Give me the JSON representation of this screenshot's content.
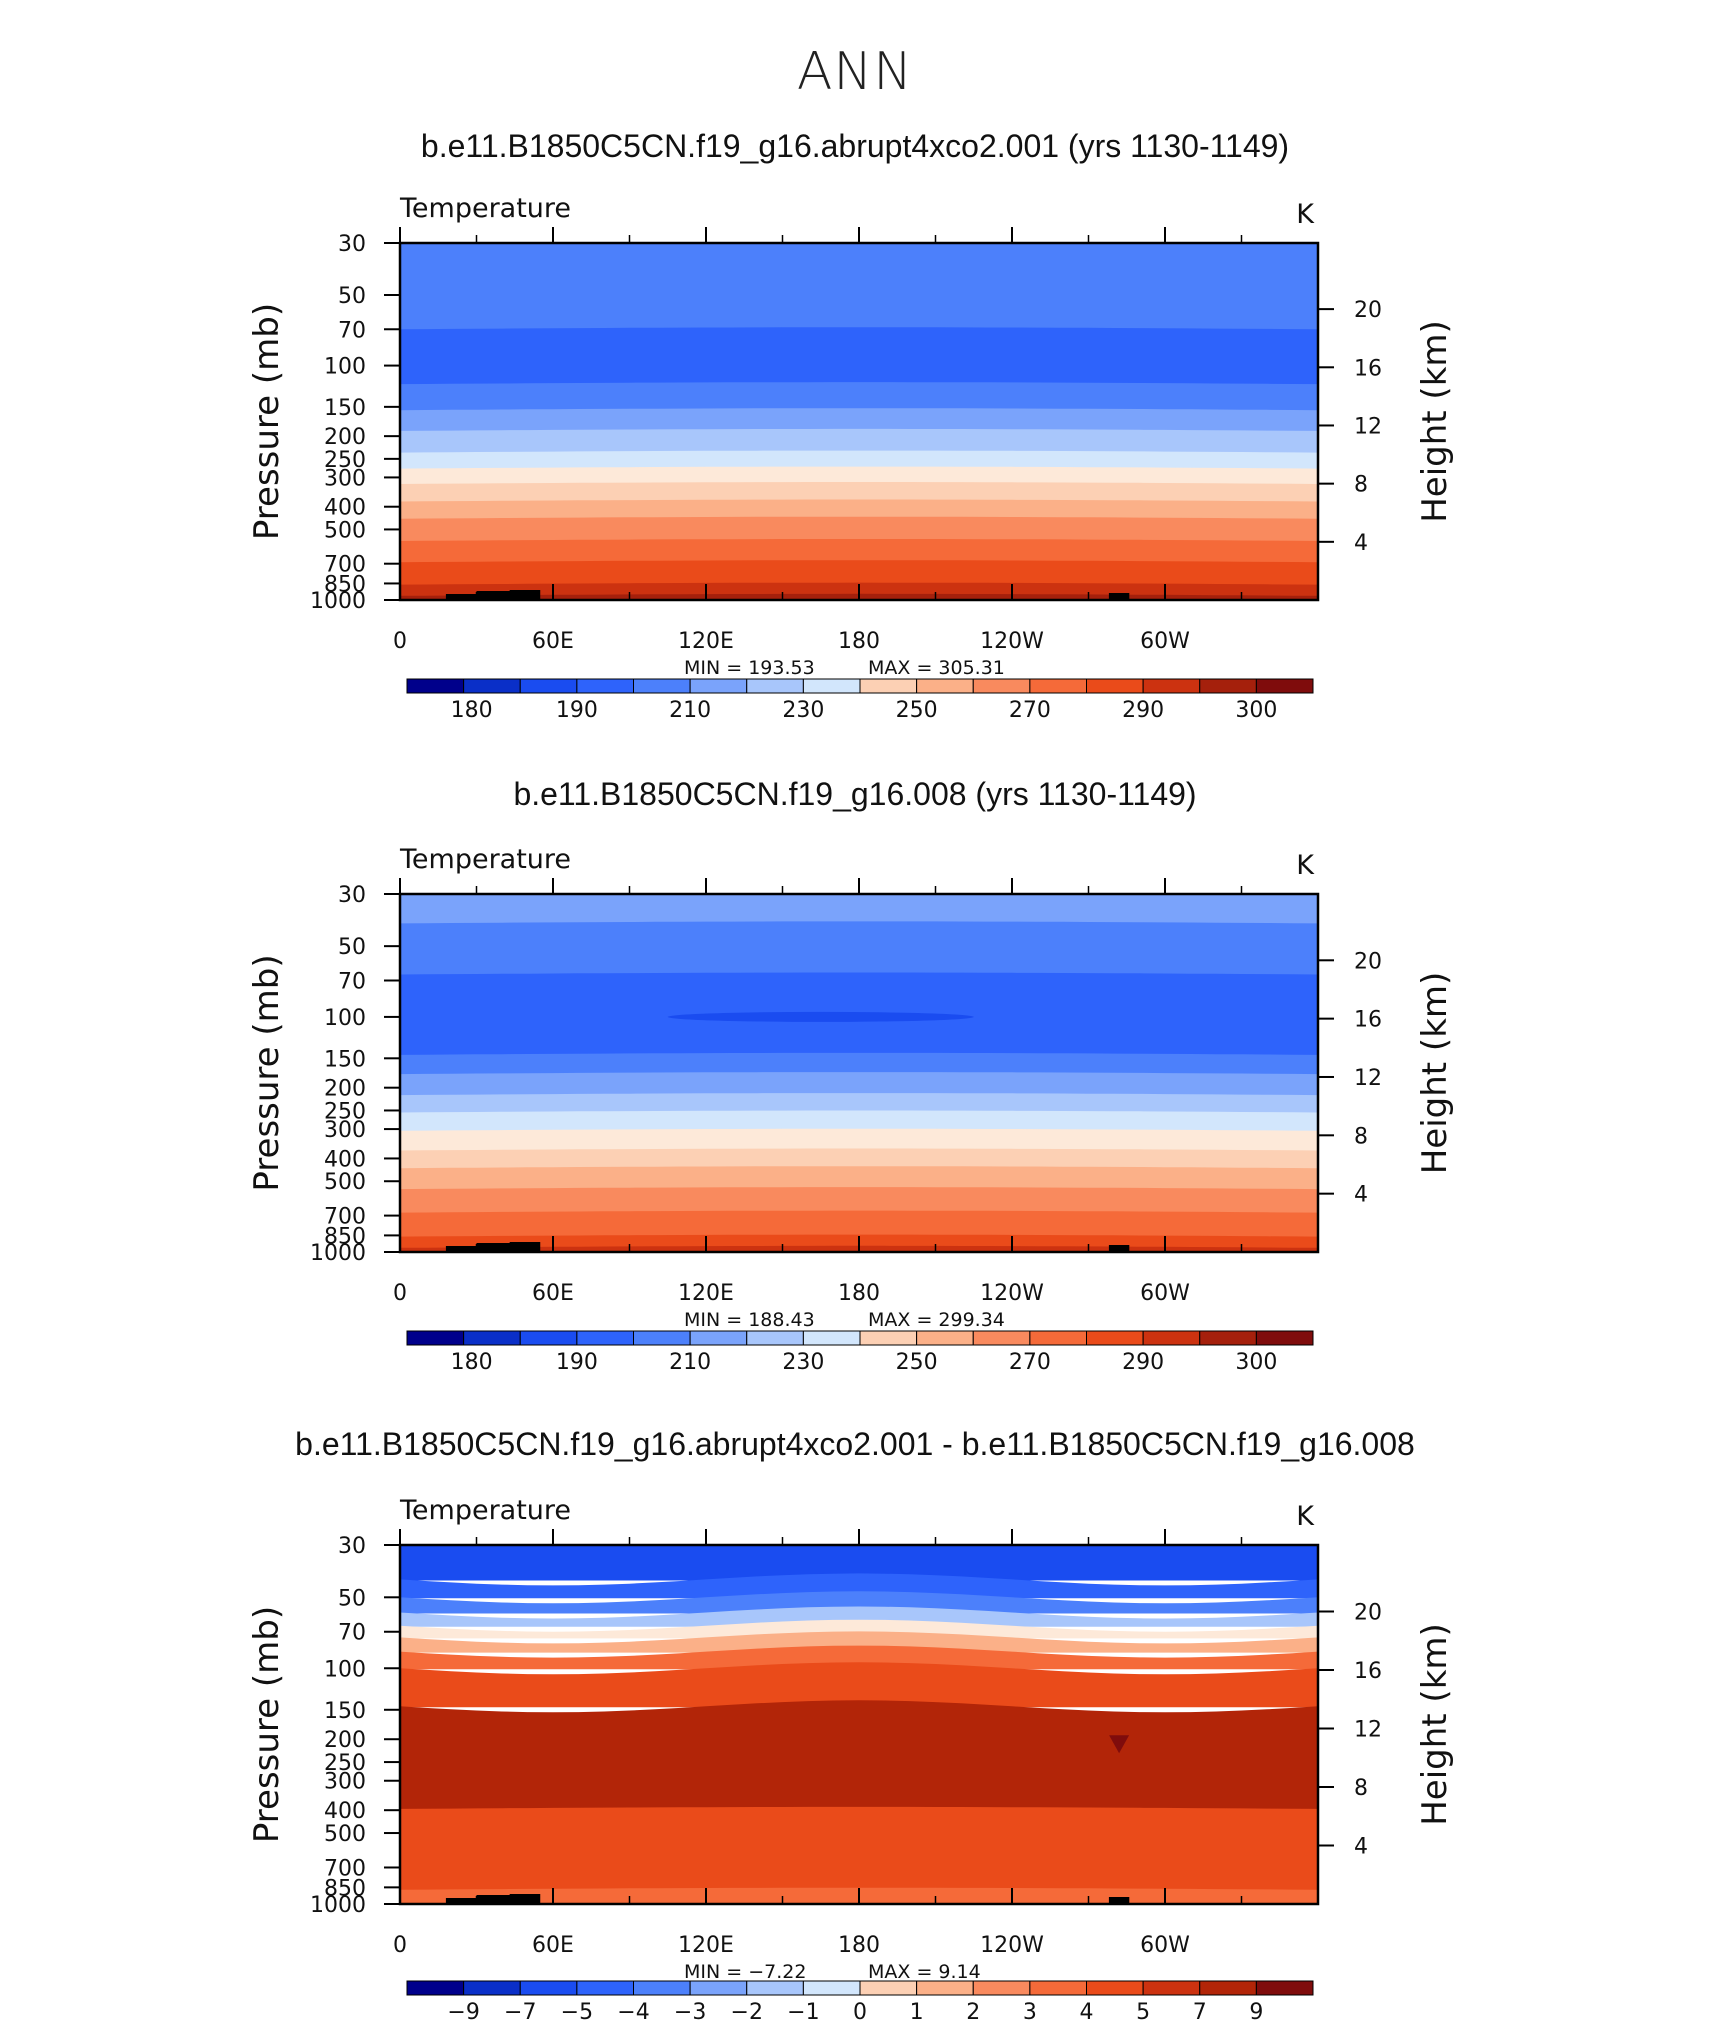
{
  "title": "ANN",
  "colors": {
    "abs": [
      "#00008b",
      "#0a2fc8",
      "#1a4cf0",
      "#2e63fb",
      "#4c80fb",
      "#7aa3fb",
      "#a8c6fb",
      "#d2e6fc",
      "#fde9d9",
      "#fcd0b4",
      "#fbb088",
      "#f98a5e",
      "#f56a39",
      "#ea4b1a",
      "#cc3210",
      "#a5200c",
      "#7f0c0c"
    ],
    "diff": [
      "#00008b",
      "#0a2fc8",
      "#1a4cf0",
      "#2e63fb",
      "#4c80fb",
      "#7aa3fb",
      "#a8c6fb",
      "#d2e6fc",
      "#fde9d9",
      "#fcd0b4",
      "#fbb088",
      "#f98a5e",
      "#f56a39",
      "#ea4b1a",
      "#cc3210",
      "#b22508",
      "#7f0c0c"
    ]
  },
  "chart_data": [
    {
      "type": "heatmap",
      "panel_title": "b.e11.B1850C5CN.f19_g16.abrupt4xco2.001 (yrs 1130-1149)",
      "left_label": "Temperature",
      "units": "K",
      "ylabel": "Pressure  (mb)",
      "y2label": "Height  (km)",
      "yticks": [
        "30",
        "50",
        "70",
        "100",
        "150",
        "200",
        "250",
        "300",
        "400",
        "500",
        "700",
        "850",
        "1000"
      ],
      "ytick_values": [
        30,
        50,
        70,
        100,
        150,
        200,
        250,
        300,
        400,
        500,
        700,
        850,
        1000
      ],
      "y2ticks": [
        "20",
        "16",
        "12",
        "8",
        "4"
      ],
      "y2tick_values": [
        20,
        16,
        12,
        8,
        4
      ],
      "xticks": [
        "0",
        "60E",
        "120E",
        "180",
        "120W",
        "60W"
      ],
      "xtick_values": [
        0,
        60,
        120,
        180,
        240,
        300
      ],
      "xlim": [
        0,
        360
      ],
      "ylim": [
        1000,
        30
      ],
      "min_label": "MIN  =  193.53",
      "max_label": "MAX  =  305.31",
      "stats": {
        "min": 193.53,
        "max": 305.31
      },
      "colorbar_labels": [
        "180",
        "190",
        "210",
        "230",
        "250",
        "270",
        "290",
        "300"
      ],
      "bands": [
        {
          "p_top": 30,
          "p_bottom": 70,
          "color_index": 4
        },
        {
          "p_top": 70,
          "p_bottom": 120,
          "color_index": 3
        },
        {
          "p_top": 120,
          "p_bottom": 155,
          "color_index": 4
        },
        {
          "p_top": 155,
          "p_bottom": 190,
          "color_index": 5
        },
        {
          "p_top": 190,
          "p_bottom": 235,
          "color_index": 6
        },
        {
          "p_top": 235,
          "p_bottom": 275,
          "color_index": 7
        },
        {
          "p_top": 275,
          "p_bottom": 320,
          "color_index": 8
        },
        {
          "p_top": 320,
          "p_bottom": 380,
          "color_index": 9
        },
        {
          "p_top": 380,
          "p_bottom": 450,
          "color_index": 10
        },
        {
          "p_top": 450,
          "p_bottom": 560,
          "color_index": 11
        },
        {
          "p_top": 560,
          "p_bottom": 690,
          "color_index": 12
        },
        {
          "p_top": 690,
          "p_bottom": 860,
          "color_index": 13
        },
        {
          "p_top": 860,
          "p_bottom": 960,
          "color_index": 14
        },
        {
          "p_top": 960,
          "p_bottom": 1000,
          "color_index": 15
        }
      ],
      "features": []
    },
    {
      "type": "heatmap",
      "panel_title": "b.e11.B1850C5CN.f19_g16.008 (yrs 1130-1149)",
      "left_label": "Temperature",
      "units": "K",
      "ylabel": "Pressure  (mb)",
      "y2label": "Height  (km)",
      "yticks": [
        "30",
        "50",
        "70",
        "100",
        "150",
        "200",
        "250",
        "300",
        "400",
        "500",
        "700",
        "850",
        "1000"
      ],
      "ytick_values": [
        30,
        50,
        70,
        100,
        150,
        200,
        250,
        300,
        400,
        500,
        700,
        850,
        1000
      ],
      "y2ticks": [
        "20",
        "16",
        "12",
        "8",
        "4"
      ],
      "y2tick_values": [
        20,
        16,
        12,
        8,
        4
      ],
      "xticks": [
        "0",
        "60E",
        "120E",
        "180",
        "120W",
        "60W"
      ],
      "xtick_values": [
        0,
        60,
        120,
        180,
        240,
        300
      ],
      "xlim": [
        0,
        360
      ],
      "ylim": [
        1000,
        30
      ],
      "min_label": "MIN  =  188.43",
      "max_label": "MAX  =  299.34",
      "stats": {
        "min": 188.43,
        "max": 299.34
      },
      "colorbar_labels": [
        "180",
        "190",
        "210",
        "230",
        "250",
        "270",
        "290",
        "300"
      ],
      "bands": [
        {
          "p_top": 30,
          "p_bottom": 40,
          "color_index": 5
        },
        {
          "p_top": 40,
          "p_bottom": 66,
          "color_index": 4
        },
        {
          "p_top": 66,
          "p_bottom": 145,
          "color_index": 3
        },
        {
          "p_top": 145,
          "p_bottom": 175,
          "color_index": 4
        },
        {
          "p_top": 175,
          "p_bottom": 215,
          "color_index": 5
        },
        {
          "p_top": 215,
          "p_bottom": 255,
          "color_index": 6
        },
        {
          "p_top": 255,
          "p_bottom": 305,
          "color_index": 7
        },
        {
          "p_top": 305,
          "p_bottom": 370,
          "color_index": 8
        },
        {
          "p_top": 370,
          "p_bottom": 440,
          "color_index": 9
        },
        {
          "p_top": 440,
          "p_bottom": 540,
          "color_index": 10
        },
        {
          "p_top": 540,
          "p_bottom": 680,
          "color_index": 11
        },
        {
          "p_top": 680,
          "p_bottom": 860,
          "color_index": 12
        },
        {
          "p_top": 860,
          "p_bottom": 960,
          "color_index": 13
        },
        {
          "p_top": 960,
          "p_bottom": 1000,
          "color_index": 14
        }
      ],
      "features": [
        {
          "kind": "cold-lens",
          "lon_start": 105,
          "lon_end": 225,
          "p_center": 100,
          "color_index": 2
        }
      ]
    },
    {
      "type": "heatmap",
      "panel_title": "b.e11.B1850C5CN.f19_g16.abrupt4xco2.001 - b.e11.B1850C5CN.f19_g16.008",
      "left_label": "Temperature",
      "units": "K",
      "ylabel": "Pressure  (mb)",
      "y2label": "Height  (km)",
      "yticks": [
        "30",
        "50",
        "70",
        "100",
        "150",
        "200",
        "250",
        "300",
        "400",
        "500",
        "700",
        "850",
        "1000"
      ],
      "ytick_values": [
        30,
        50,
        70,
        100,
        150,
        200,
        250,
        300,
        400,
        500,
        700,
        850,
        1000
      ],
      "y2ticks": [
        "20",
        "16",
        "12",
        "8",
        "4"
      ],
      "y2tick_values": [
        20,
        16,
        12,
        8,
        4
      ],
      "xticks": [
        "0",
        "60E",
        "120E",
        "180",
        "120W",
        "60W"
      ],
      "xtick_values": [
        0,
        60,
        120,
        180,
        240,
        300
      ],
      "xlim": [
        0,
        360
      ],
      "ylim": [
        1000,
        30
      ],
      "min_label": "MIN  =     −7.22",
      "max_label": "MAX  =     9.14",
      "stats": {
        "min": -7.22,
        "max": 9.14
      },
      "colorbar_labels": [
        "−9",
        "−7",
        "−5",
        "−4",
        "−3",
        "−2",
        "−1",
        "0",
        "1",
        "2",
        "3",
        "4",
        "5",
        "7",
        "9"
      ],
      "bands": [
        {
          "p_top": 30,
          "p_bottom": 42,
          "color_index": 2
        },
        {
          "p_top": 42,
          "p_bottom": 50,
          "color_index": 3
        },
        {
          "p_top": 50,
          "p_bottom": 58,
          "color_index": 4
        },
        {
          "p_top": 58,
          "p_bottom": 66,
          "color_index": 6
        },
        {
          "p_top": 66,
          "p_bottom": 74,
          "color_index": 8
        },
        {
          "p_top": 74,
          "p_bottom": 85,
          "color_index": 10
        },
        {
          "p_top": 85,
          "p_bottom": 100,
          "color_index": 12
        },
        {
          "p_top": 100,
          "p_bottom": 145,
          "color_index": 13
        },
        {
          "p_top": 145,
          "p_bottom": 395,
          "color_index": 15
        },
        {
          "p_top": 395,
          "p_bottom": 870,
          "color_index": 13
        },
        {
          "p_top": 870,
          "p_bottom": 1000,
          "color_index": 12
        }
      ],
      "features": [
        {
          "kind": "warm-spot",
          "lon": 282,
          "p_center": 200,
          "color_index": 16
        }
      ]
    }
  ]
}
